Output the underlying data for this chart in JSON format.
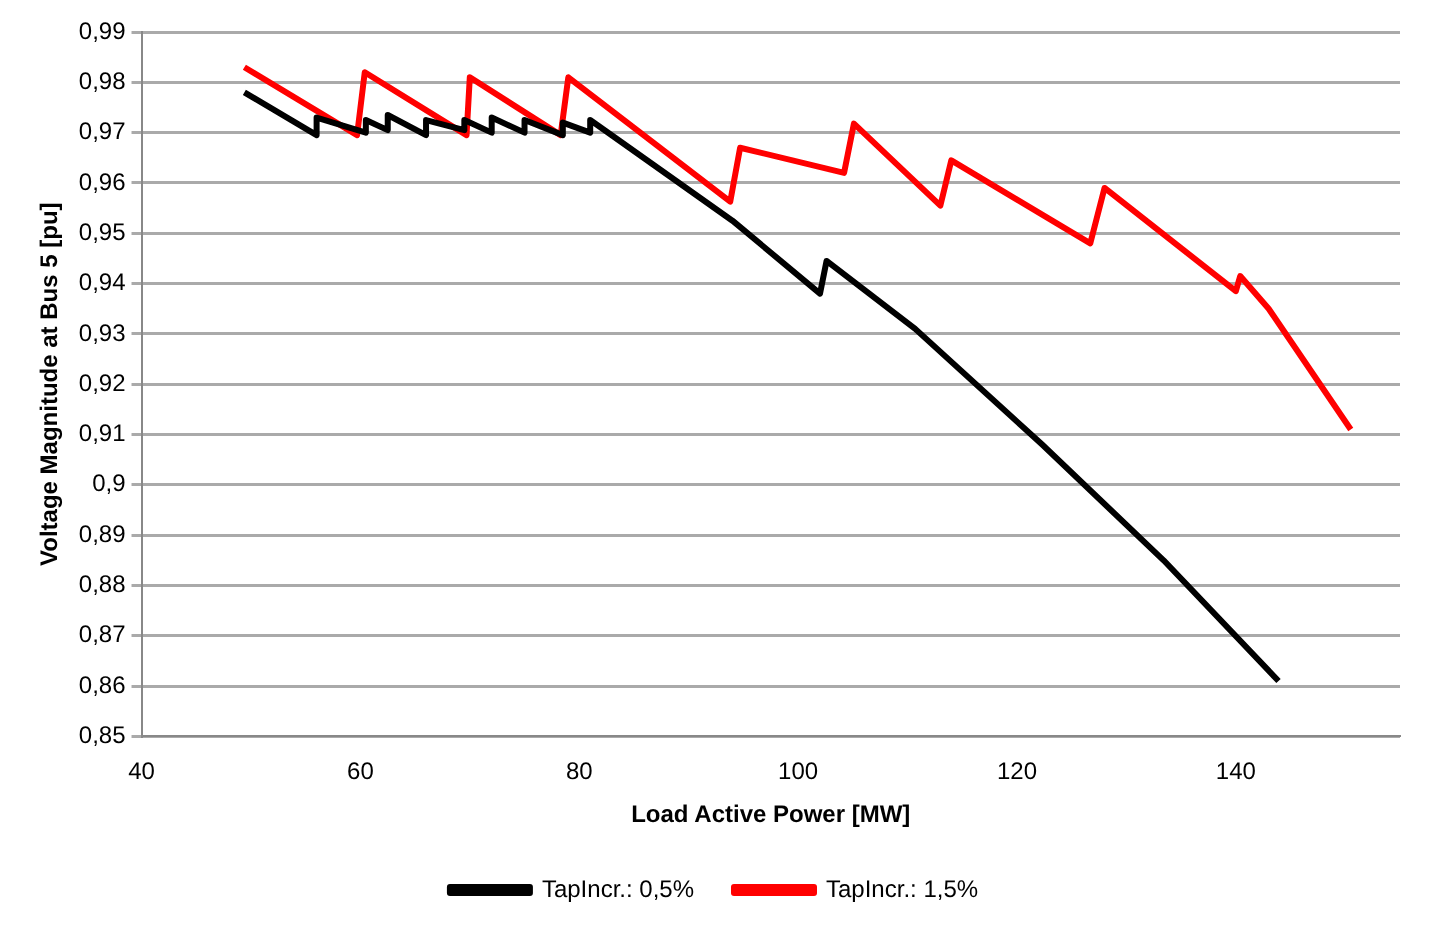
{
  "chart_data": {
    "type": "line",
    "xlabel": "Load Active Power [MW]",
    "ylabel": "Voltage Magnitude at Bus 5 [pu]",
    "xlim": [
      40,
      155
    ],
    "xticks": [
      40,
      60,
      80,
      100,
      120,
      140
    ],
    "ylim": [
      0.85,
      0.99
    ],
    "yticks": [
      {
        "value": 0.85,
        "label": "0,85"
      },
      {
        "value": 0.86,
        "label": "0,86"
      },
      {
        "value": 0.87,
        "label": "0,87"
      },
      {
        "value": 0.88,
        "label": "0,88"
      },
      {
        "value": 0.89,
        "label": "0,89"
      },
      {
        "value": 0.9,
        "label": "0,9"
      },
      {
        "value": 0.91,
        "label": "0,91"
      },
      {
        "value": 0.92,
        "label": "0,92"
      },
      {
        "value": 0.93,
        "label": "0,93"
      },
      {
        "value": 0.94,
        "label": "0,94"
      },
      {
        "value": 0.95,
        "label": "0,95"
      },
      {
        "value": 0.96,
        "label": "0,96"
      },
      {
        "value": 0.97,
        "label": "0,97"
      },
      {
        "value": 0.98,
        "label": "0,98"
      },
      {
        "value": 0.99,
        "label": "0,99"
      }
    ],
    "grid": "y",
    "legend": "bottom",
    "marker": "none",
    "line_style": "solid",
    "series": [
      {
        "name": "TapIncr.: 0,5%",
        "color": "#000000",
        "x": [
          49.4,
          56,
          56,
          60.5,
          60.5,
          62.5,
          62.5,
          66,
          66,
          69.5,
          69.5,
          72,
          72,
          75,
          75,
          78.5,
          78.5,
          81,
          81,
          94,
          102,
          102.6,
          110.7,
          122.3,
          133.4,
          143.9
        ],
        "values": [
          0.978,
          0.9695,
          0.973,
          0.97,
          0.9725,
          0.9705,
          0.9735,
          0.9695,
          0.9725,
          0.9705,
          0.9725,
          0.97,
          0.973,
          0.97,
          0.9725,
          0.9695,
          0.972,
          0.97,
          0.9725,
          0.9525,
          0.938,
          0.9445,
          0.931,
          0.908,
          0.885,
          0.861
        ]
      },
      {
        "name": "TapIncr.: 1,5%",
        "color": "#ff0000",
        "x": [
          49.4,
          59.7,
          60.4,
          69.7,
          70,
          78.3,
          79,
          93.8,
          94.7,
          104.2,
          105.1,
          113,
          114,
          126.7,
          128,
          140,
          140.4,
          143,
          150.5
        ],
        "values": [
          0.983,
          0.9695,
          0.982,
          0.9695,
          0.981,
          0.9695,
          0.981,
          0.9563,
          0.967,
          0.962,
          0.9718,
          0.9555,
          0.9645,
          0.948,
          0.959,
          0.9385,
          0.9415,
          0.935,
          0.911
        ]
      }
    ]
  }
}
